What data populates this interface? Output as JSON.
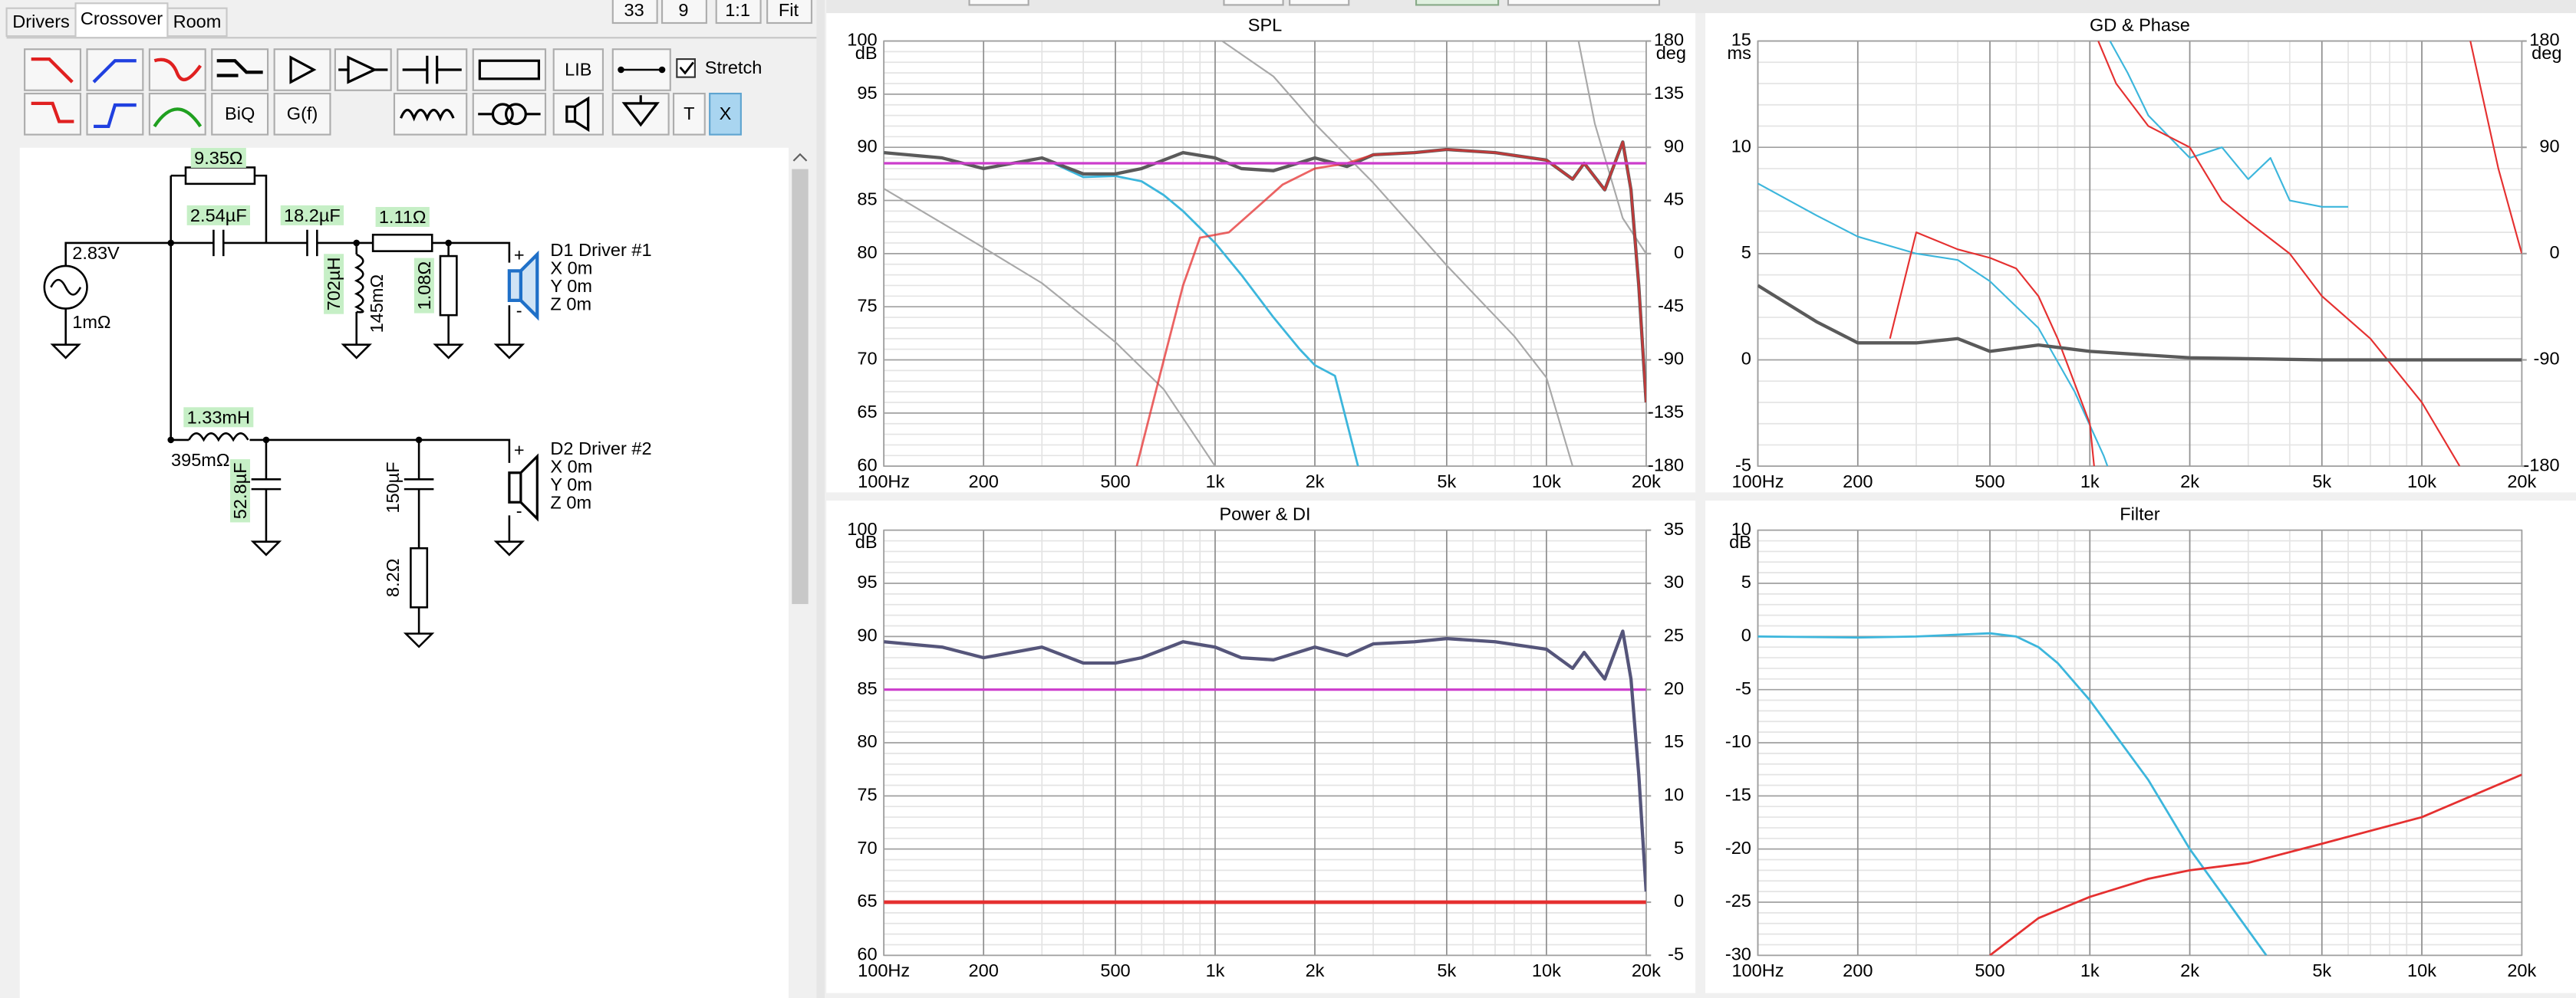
{
  "tabs": [
    "Drivers",
    "Crossover",
    "Room"
  ],
  "top_buttons": [
    "33",
    "9",
    "1:1",
    "Fit"
  ],
  "toolbar": {
    "buttons": [
      "LIB",
      "BiQ",
      "G(f)",
      "T",
      "X"
    ],
    "stretch": "Stretch"
  },
  "schematic": {
    "labels": [
      "9.35Ω",
      "2.54µF",
      "18.2µF",
      "1.11Ω",
      "2.83V",
      "1mΩ",
      "702µH",
      "145mΩ",
      "1.08Ω",
      "1.33mH",
      "395mΩ",
      "52.8µF",
      "150µF",
      "8.2Ω"
    ],
    "polarity": [
      "+",
      "-"
    ],
    "drivers": [
      {
        "name": "D1 Driver #1",
        "coords": [
          "X 0m",
          "Y 0m",
          "Z 0m"
        ]
      },
      {
        "name": "D2 Driver #2",
        "coords": [
          "X 0m",
          "Y 0m",
          "Z 0m"
        ]
      }
    ]
  },
  "chart_data": [
    {
      "type": "line",
      "title": "SPL",
      "y_unit": "dB",
      "y2_unit": "deg",
      "log_x": true,
      "xlim": [
        100,
        20000
      ],
      "xticks": [
        {
          "value": 100,
          "label": "100Hz"
        },
        200,
        500,
        {
          "value": 1000,
          "label": "1k"
        },
        {
          "value": 2000,
          "label": "2k"
        },
        {
          "value": 5000,
          "label": "5k"
        },
        {
          "value": 10000,
          "label": "10k"
        },
        {
          "value": 20000,
          "label": "20k"
        }
      ],
      "ylim": [
        60,
        100
      ],
      "yticks": [
        60,
        65,
        70,
        75,
        80,
        85,
        90,
        95,
        100
      ],
      "y2lim": [
        -180,
        180
      ],
      "y2ticks": [
        -180,
        -135,
        -90,
        -45,
        0,
        45,
        90,
        135,
        180
      ],
      "series": [
        {
          "color": "#a8a8a8",
          "axis": "y2",
          "width": 1,
          "x": [
            100,
            200,
            300,
            500,
            700,
            1000,
            1030,
            1050,
            1500,
            2000,
            3000,
            5000,
            8000,
            10000,
            12000,
            12200,
            12500,
            14000,
            17000,
            20000
          ],
          "values": [
            55,
            5,
            -25,
            -75,
            -115,
            -180,
            null,
            180,
            150,
            110,
            60,
            -10,
            -70,
            -105,
            -180,
            null,
            180,
            110,
            30,
            0
          ]
        },
        {
          "color": "#3cb6dc",
          "width": 1.3,
          "x": [
            100,
            150,
            200,
            300,
            400,
            500,
            600,
            700,
            800,
            1000,
            1200,
            1500,
            1800,
            2000,
            2300,
            2700
          ],
          "values": [
            89.5,
            89,
            88,
            89,
            87.2,
            87.3,
            86.8,
            85.5,
            84,
            81,
            78,
            74,
            71,
            69.5,
            68.5,
            60
          ]
        },
        {
          "color": "#5a5a5a",
          "width": 2,
          "x": [
            100,
            150,
            200,
            300,
            400,
            500,
            600,
            800,
            1000,
            1200,
            1500,
            2000,
            2500,
            3000,
            4000,
            5000,
            7000,
            10000,
            12000,
            13000,
            15000,
            17000,
            18000,
            19000,
            20000
          ],
          "values": [
            89.5,
            89,
            88,
            89,
            87.5,
            87.5,
            88,
            89.5,
            89,
            88,
            87.8,
            89,
            88.2,
            89.3,
            89.5,
            89.8,
            89.5,
            88.8,
            87,
            88.5,
            86,
            90.5,
            86,
            77,
            66
          ]
        },
        {
          "color": "#e53030",
          "width": 1.3,
          "opacity": 0.75,
          "x": [
            580,
            700,
            800,
            900,
            1100,
            1300,
            1600,
            2000,
            2500,
            3000,
            4000,
            5000,
            7000,
            10000,
            12000,
            13000,
            15000,
            17000,
            18000,
            19000,
            20000
          ],
          "values": [
            60,
            70,
            77,
            81.5,
            82,
            84,
            86.5,
            88,
            88.5,
            89.3,
            89.5,
            89.8,
            89.5,
            88.8,
            87,
            88.5,
            86,
            90.5,
            86,
            77,
            66
          ]
        },
        {
          "color": "#cc3ccc",
          "width": 1.5,
          "x": [
            100,
            20000
          ],
          "values": [
            88.5,
            88.5
          ]
        }
      ]
    },
    {
      "type": "line",
      "title": "GD & Phase",
      "y_unit": "ms",
      "y2_unit": "deg",
      "log_x": true,
      "xlim": [
        100,
        20000
      ],
      "xticks": [
        {
          "value": 100,
          "label": "100Hz"
        },
        200,
        500,
        {
          "value": 1000,
          "label": "1k"
        },
        {
          "value": 2000,
          "label": "2k"
        },
        {
          "value": 5000,
          "label": "5k"
        },
        {
          "value": 10000,
          "label": "10k"
        },
        {
          "value": 20000,
          "label": "20k"
        }
      ],
      "ylim": [
        -5,
        15
      ],
      "yticks": [
        -5,
        0,
        5,
        10,
        15
      ],
      "y2lim": [
        -180,
        180
      ],
      "y2ticks": [
        -180,
        -90,
        0,
        90,
        180
      ],
      "series": [
        {
          "color": "#3cb6dc",
          "width": 1,
          "x": [
            100,
            150,
            200,
            300,
            400,
            500,
            700,
            900,
            1100,
            1130,
            1140,
            1150,
            1300,
            1500,
            2000,
            2500,
            3000,
            3500,
            4000,
            5000,
            6000
          ],
          "values": [
            8.3,
            6.8,
            5.8,
            5,
            4.7,
            3.7,
            1.5,
            -1.5,
            -4.5,
            -5,
            null,
            15,
            13.5,
            11.5,
            9.5,
            10,
            8.5,
            9.5,
            7.5,
            7.2,
            7.2
          ]
        },
        {
          "color": "#e53030",
          "width": 1,
          "x": [
            250,
            300,
            400,
            500,
            600,
            700,
            800,
            1000,
            1030,
            1045,
            1060,
            1200,
            1500,
            2000,
            2500,
            3000,
            4000,
            5000,
            7000,
            10000,
            13000,
            13500,
            14000,
            17000,
            20000
          ],
          "values": [
            1,
            6,
            5.2,
            4.8,
            4.3,
            3,
            1,
            -3,
            -5,
            null,
            15,
            13,
            11,
            10,
            7.5,
            6.5,
            5,
            3,
            1,
            -2,
            -5,
            null,
            15,
            9,
            5
          ]
        },
        {
          "color": "#5a5a5a",
          "width": 2,
          "x": [
            100,
            150,
            200,
            300,
            400,
            500,
            700,
            1000,
            2000,
            5000,
            20000
          ],
          "values": [
            3.5,
            1.8,
            0.8,
            0.8,
            1,
            0.4,
            0.7,
            0.4,
            0.1,
            0,
            0
          ]
        }
      ]
    },
    {
      "type": "line",
      "title": "Power & DI",
      "y_unit": "dB",
      "log_x": true,
      "xlim": [
        100,
        20000
      ],
      "xticks": [
        {
          "value": 100,
          "label": "100Hz"
        },
        200,
        500,
        {
          "value": 1000,
          "label": "1k"
        },
        {
          "value": 2000,
          "label": "2k"
        },
        {
          "value": 5000,
          "label": "5k"
        },
        {
          "value": 10000,
          "label": "10k"
        },
        {
          "value": 20000,
          "label": "20k"
        }
      ],
      "ylim": [
        60,
        100
      ],
      "yticks": [
        60,
        65,
        70,
        75,
        80,
        85,
        90,
        95,
        100
      ],
      "y2lim": [
        -5,
        35
      ],
      "y2ticks": [
        -5,
        0,
        5,
        10,
        15,
        20,
        25,
        30,
        35
      ],
      "series": [
        {
          "color": "#cc3ccc",
          "width": 1.5,
          "x": [
            100,
            20000
          ],
          "values": [
            85,
            85
          ]
        },
        {
          "color": "#e53030",
          "width": 2.2,
          "x": [
            100,
            20000
          ],
          "values": [
            65,
            65
          ]
        },
        {
          "color": "#55557a",
          "width": 2,
          "x": [
            100,
            150,
            200,
            300,
            400,
            500,
            600,
            800,
            1000,
            1200,
            1500,
            2000,
            2500,
            3000,
            4000,
            5000,
            7000,
            10000,
            12000,
            13000,
            15000,
            17000,
            18000,
            19000,
            20000
          ],
          "values": [
            89.5,
            89,
            88,
            89,
            87.5,
            87.5,
            88,
            89.5,
            89,
            88,
            87.8,
            89,
            88.2,
            89.3,
            89.5,
            89.8,
            89.5,
            88.8,
            87,
            88.5,
            86,
            90.5,
            86,
            77,
            66
          ]
        }
      ]
    },
    {
      "type": "line",
      "title": "Filter",
      "y_unit": "dB",
      "log_x": true,
      "xlim": [
        100,
        20000
      ],
      "xticks": [
        {
          "value": 100,
          "label": "100Hz"
        },
        200,
        500,
        {
          "value": 1000,
          "label": "1k"
        },
        {
          "value": 2000,
          "label": "2k"
        },
        {
          "value": 5000,
          "label": "5k"
        },
        {
          "value": 10000,
          "label": "10k"
        },
        {
          "value": 20000,
          "label": "20k"
        }
      ],
      "ylim": [
        -30,
        10
      ],
      "yticks": [
        -30,
        -25,
        -20,
        -15,
        -10,
        -5,
        0,
        5,
        10
      ],
      "series": [
        {
          "color": "#3cb6dc",
          "width": 1.3,
          "x": [
            100,
            200,
            300,
            500,
            600,
            700,
            800,
            1000,
            1500,
            2000,
            3400
          ],
          "values": [
            0,
            -0.1,
            0,
            0.3,
            0,
            -1,
            -2.5,
            -6,
            -13.5,
            -20,
            -30
          ]
        },
        {
          "color": "#e53030",
          "width": 1.3,
          "x": [
            500,
            700,
            1000,
            1500,
            2000,
            3000,
            5000,
            10000,
            20000
          ],
          "values": [
            -30,
            -26.5,
            -24.5,
            -22.8,
            -22,
            -21.3,
            -19.5,
            -17,
            -13
          ]
        }
      ]
    }
  ]
}
